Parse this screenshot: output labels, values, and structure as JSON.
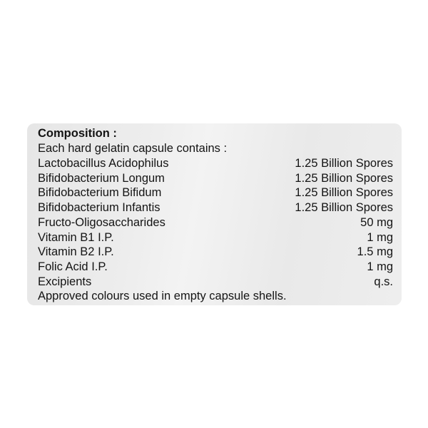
{
  "title": "Composition :",
  "intro": "Each hard gelatin capsule contains  :",
  "ingredients": [
    {
      "name": "Lactobacillus Acidophilus",
      "amount": "1.25 Billion Spores"
    },
    {
      "name": "Bifidobacterium Longum",
      "amount": "1.25 Billion Spores"
    },
    {
      "name": "Bifidobacterium Bifidum",
      "amount": "1.25 Billion Spores"
    },
    {
      "name": "Bifidobacterium Infantis",
      "amount": "1.25 Billion Spores"
    },
    {
      "name": "Fructo-Oligosaccharides",
      "amount": "50 mg"
    },
    {
      "name": "Vitamin B1  I.P.",
      "amount": "1 mg"
    },
    {
      "name": "Vitamin B2  I.P.",
      "amount": "1.5 mg"
    },
    {
      "name": "Folic Acid  I.P.",
      "amount": "1 mg"
    },
    {
      "name": "Excipients",
      "amount": "q.s."
    }
  ],
  "footer": "Approved colours used in empty capsule shells."
}
